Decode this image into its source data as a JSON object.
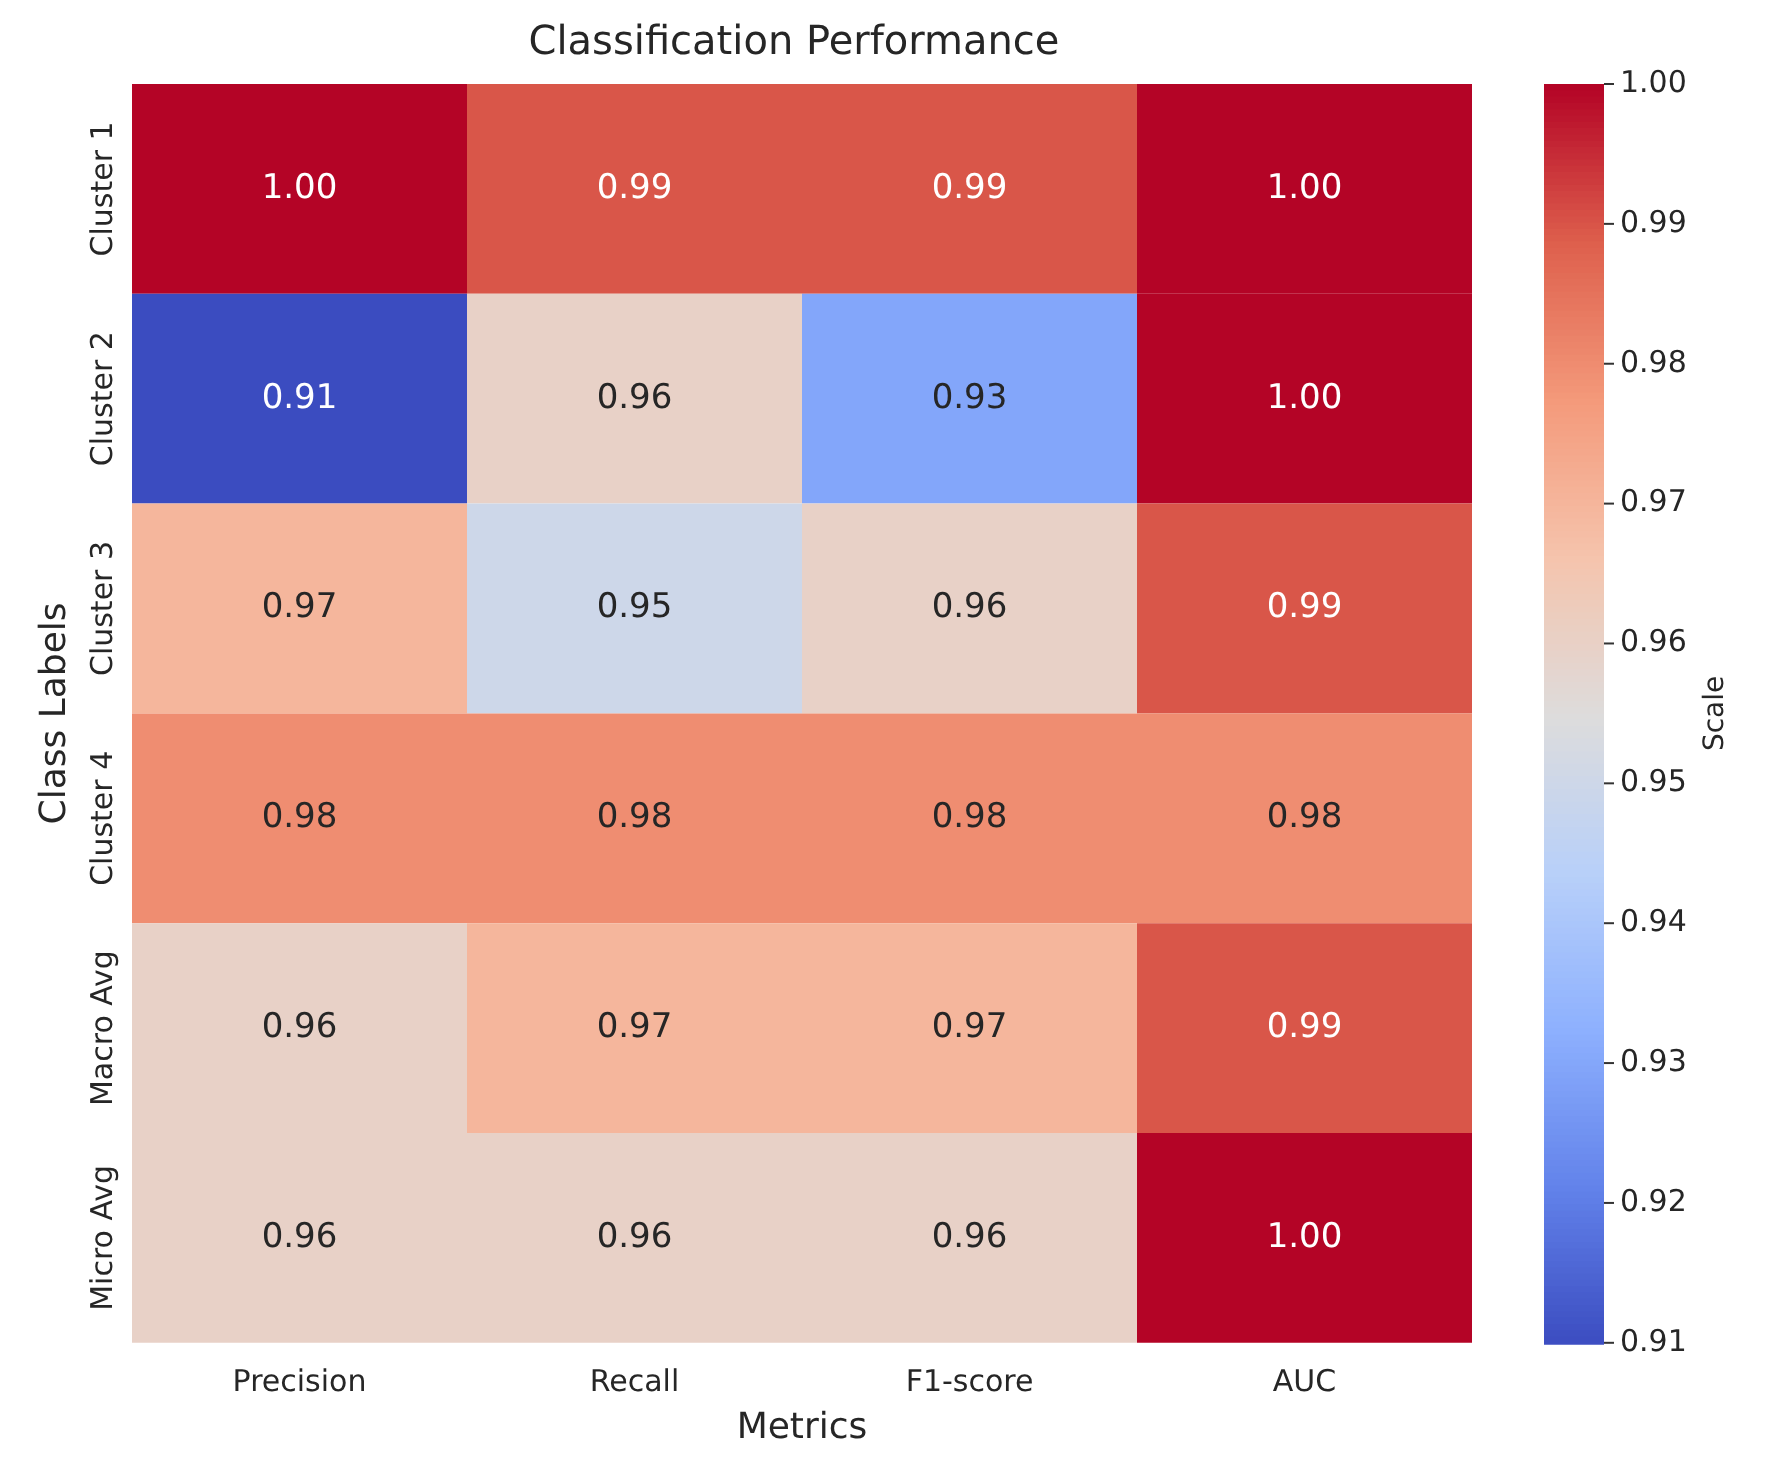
{
  "chart_data": {
    "type": "heatmap",
    "title": "Classification Performance",
    "xlabel": "Metrics",
    "ylabel": "Class Labels",
    "clabel": "Scale",
    "categories": [
      "Precision",
      "Recall",
      "F1-score",
      "AUC"
    ],
    "y_categories": [
      "Cluster 1",
      "Cluster 2",
      "Cluster 3",
      "Cluster 4",
      "Macro Avg",
      "Micro Avg"
    ],
    "cells": [
      [
        1.0,
        0.99,
        0.99,
        1.0
      ],
      [
        0.91,
        0.96,
        0.93,
        1.0
      ],
      [
        0.97,
        0.95,
        0.96,
        0.99
      ],
      [
        0.98,
        0.98,
        0.98,
        0.98
      ],
      [
        0.96,
        0.97,
        0.97,
        0.99
      ],
      [
        0.96,
        0.96,
        0.96,
        1.0
      ]
    ],
    "cell_labels": [
      [
        "1.00",
        "0.99",
        "0.99",
        "1.00"
      ],
      [
        "0.91",
        "0.96",
        "0.93",
        "1.00"
      ],
      [
        "0.97",
        "0.95",
        "0.96",
        "0.99"
      ],
      [
        "0.98",
        "0.98",
        "0.98",
        "0.98"
      ],
      [
        "0.96",
        "0.97",
        "0.97",
        "0.99"
      ],
      [
        "0.96",
        "0.96",
        "0.96",
        "1.00"
      ]
    ],
    "clim": [
      0.91,
      1.0
    ],
    "cticks": [
      0.91,
      0.92,
      0.93,
      0.94,
      0.95,
      0.96,
      0.97,
      0.98,
      0.99,
      {
        "value": 1.0,
        "label": "1.00"
      }
    ]
  }
}
